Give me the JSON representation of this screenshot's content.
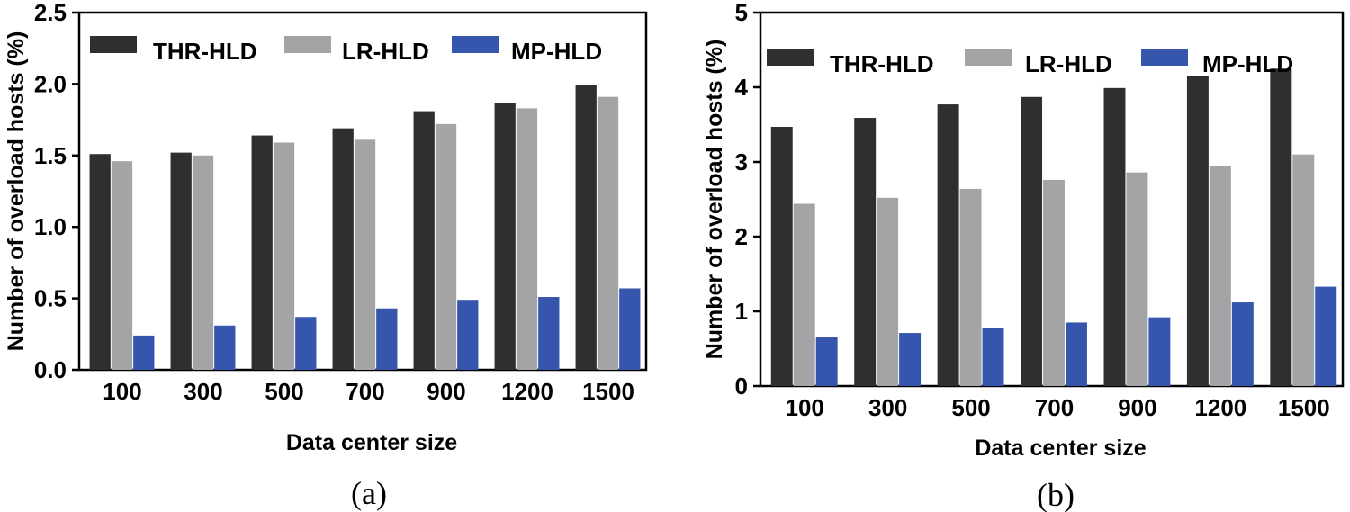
{
  "colors": {
    "THR-HLD": "#2f2f2f",
    "LR-HLD": "#a4a4a6",
    "MP-HLD": "#3656ad"
  },
  "chart_data": [
    {
      "type": "bar",
      "caption": "(a)",
      "categories": [
        "100",
        "300",
        "500",
        "700",
        "900",
        "1200",
        "1500"
      ],
      "series": [
        {
          "name": "THR-HLD",
          "values": [
            1.51,
            1.52,
            1.64,
            1.69,
            1.81,
            1.87,
            1.99
          ]
        },
        {
          "name": "LR-HLD",
          "values": [
            1.46,
            1.5,
            1.59,
            1.61,
            1.72,
            1.83,
            1.91
          ]
        },
        {
          "name": "MP-HLD",
          "values": [
            0.24,
            0.31,
            0.37,
            0.43,
            0.49,
            0.51,
            0.57
          ]
        }
      ],
      "xlabel": "Data center size",
      "ylabel": "Number of overload hosts (%)",
      "ylim": [
        0,
        2.5
      ],
      "yticks": [
        "0.0",
        "0.5",
        "1.0",
        "1.5",
        "2.0",
        "2.5"
      ],
      "legend": "top"
    },
    {
      "type": "bar",
      "caption": "(b)",
      "categories": [
        "100",
        "300",
        "500",
        "700",
        "900",
        "1200",
        "1500"
      ],
      "series": [
        {
          "name": "THR-HLD",
          "values": [
            3.47,
            3.59,
            3.77,
            3.87,
            3.99,
            4.15,
            4.25
          ]
        },
        {
          "name": "LR-HLD",
          "values": [
            2.44,
            2.52,
            2.64,
            2.76,
            2.86,
            2.94,
            3.1
          ]
        },
        {
          "name": "MP-HLD",
          "values": [
            0.65,
            0.71,
            0.78,
            0.85,
            0.92,
            1.12,
            1.33
          ]
        }
      ],
      "xlabel": "Data center size",
      "ylabel": "Number of overload hosts (%)",
      "ylim": [
        0,
        5
      ],
      "yticks": [
        "0",
        "1",
        "2",
        "3",
        "4",
        "5"
      ],
      "legend": "top"
    }
  ]
}
